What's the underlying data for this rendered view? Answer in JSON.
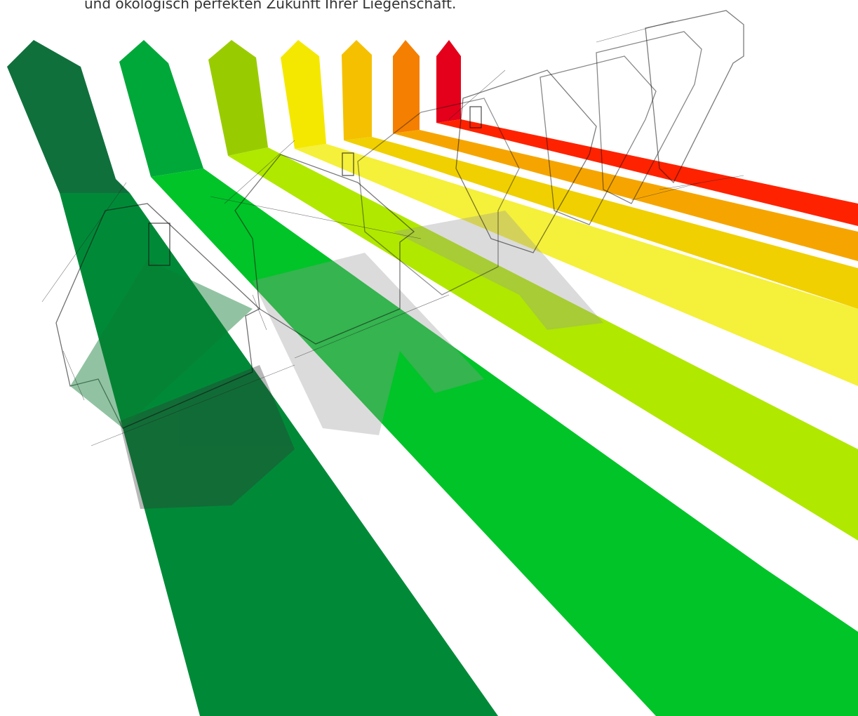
{
  "caption": "und ökologisch perfekten Zukunft Ihrer Liegenschaft."
}
